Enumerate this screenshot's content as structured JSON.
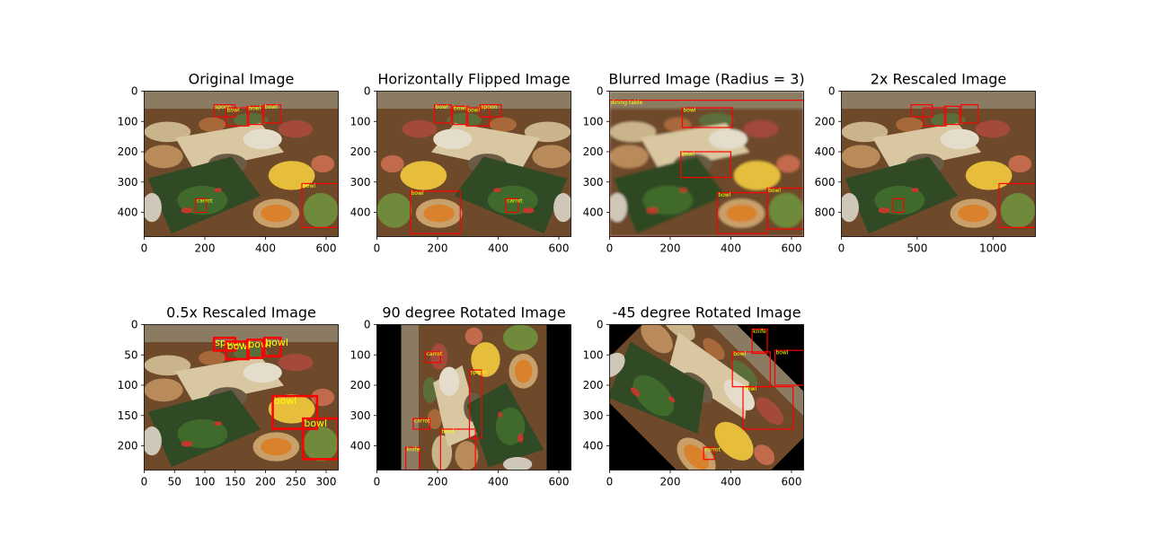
{
  "figure": {
    "background": "#ffffff"
  },
  "colors": {
    "box": "#ff0000",
    "label": "#ffff00"
  },
  "chart_data": [
    {
      "type": "image",
      "title": "Original Image",
      "xlim": [
        0,
        640
      ],
      "ylim": [
        0,
        480
      ],
      "xticks": [
        0,
        200,
        400,
        600
      ],
      "yticks": [
        0,
        100,
        200,
        300,
        400
      ],
      "scene": "normal",
      "boxes": [
        {
          "label": "spoon",
          "x0": 230,
          "y0": 45,
          "x1": 300,
          "y1": 85
        },
        {
          "label": "bowl",
          "x0": 270,
          "y0": 55,
          "x1": 345,
          "y1": 115
        },
        {
          "label": "bowl",
          "x0": 340,
          "y0": 50,
          "x1": 390,
          "y1": 110
        },
        {
          "label": "bowl",
          "x0": 395,
          "y0": 45,
          "x1": 450,
          "y1": 105
        },
        {
          "label": "carrot",
          "x0": 170,
          "y0": 355,
          "x1": 205,
          "y1": 400
        },
        {
          "label": "bowl",
          "x0": 520,
          "y0": 305,
          "x1": 640,
          "y1": 450
        }
      ]
    },
    {
      "type": "image",
      "title": "Horizontally Flipped Image",
      "xlim": [
        0,
        640
      ],
      "ylim": [
        0,
        480
      ],
      "xticks": [
        0,
        200,
        400,
        600
      ],
      "yticks": [
        0,
        100,
        200,
        300,
        400
      ],
      "scene": "flip",
      "boxes": [
        {
          "label": "bowl",
          "x0": 190,
          "y0": 45,
          "x1": 245,
          "y1": 105
        },
        {
          "label": "bowl",
          "x0": 250,
          "y0": 50,
          "x1": 300,
          "y1": 110
        },
        {
          "label": "bowl",
          "x0": 295,
          "y0": 55,
          "x1": 370,
          "y1": 115
        },
        {
          "label": "spoon",
          "x0": 340,
          "y0": 45,
          "x1": 410,
          "y1": 85
        },
        {
          "label": "bowl",
          "x0": 110,
          "y0": 330,
          "x1": 275,
          "y1": 470
        },
        {
          "label": "carrot",
          "x0": 425,
          "y0": 355,
          "x1": 465,
          "y1": 400
        }
      ]
    },
    {
      "type": "image",
      "title": "Blurred Image (Radius = 3)",
      "xlim": [
        0,
        640
      ],
      "ylim": [
        0,
        480
      ],
      "xticks": [
        0,
        200,
        400,
        600
      ],
      "yticks": [
        0,
        100,
        200,
        300,
        400
      ],
      "scene": "normal",
      "blur": 2,
      "boxes": [
        {
          "label": "dining table",
          "x0": 0,
          "y0": 30,
          "x1": 640,
          "y1": 480
        },
        {
          "label": "bowl",
          "x0": 240,
          "y0": 55,
          "x1": 405,
          "y1": 120
        },
        {
          "label": "bowl",
          "x0": 235,
          "y0": 200,
          "x1": 400,
          "y1": 285
        },
        {
          "label": "bowl",
          "x0": 355,
          "y0": 335,
          "x1": 520,
          "y1": 470
        },
        {
          "label": "bowl",
          "x0": 520,
          "y0": 320,
          "x1": 640,
          "y1": 455
        }
      ]
    },
    {
      "type": "image",
      "title": "2x Rescaled Image",
      "xlim": [
        0,
        1280
      ],
      "ylim": [
        0,
        960
      ],
      "xticks": [
        0,
        500,
        1000
      ],
      "yticks": [
        0,
        200,
        400,
        600,
        800
      ],
      "scene": "normal",
      "boxes": [
        {
          "label": "",
          "x0": 460,
          "y0": 90,
          "x1": 600,
          "y1": 170
        },
        {
          "label": "",
          "x0": 540,
          "y0": 110,
          "x1": 690,
          "y1": 230
        },
        {
          "label": "",
          "x0": 680,
          "y0": 100,
          "x1": 780,
          "y1": 220
        },
        {
          "label": "",
          "x0": 790,
          "y0": 90,
          "x1": 900,
          "y1": 210
        },
        {
          "label": "",
          "x0": 340,
          "y0": 710,
          "x1": 410,
          "y1": 800
        },
        {
          "label": "",
          "x0": 1040,
          "y0": 610,
          "x1": 1280,
          "y1": 900
        }
      ]
    },
    {
      "type": "image",
      "title": "0.5x Rescaled Image",
      "xlim": [
        0,
        320
      ],
      "ylim": [
        0,
        240
      ],
      "xticks": [
        0,
        50,
        100,
        150,
        200,
        250,
        300
      ],
      "yticks": [
        0,
        50,
        100,
        150,
        200
      ],
      "scene": "normal",
      "boxes": [
        {
          "label": "spoon",
          "x0": 115,
          "y0": 22,
          "x1": 150,
          "y1": 43
        },
        {
          "label": "bowl",
          "x0": 135,
          "y0": 28,
          "x1": 172,
          "y1": 57
        },
        {
          "label": "bowl",
          "x0": 170,
          "y0": 25,
          "x1": 195,
          "y1": 55
        },
        {
          "label": "bowl",
          "x0": 198,
          "y0": 22,
          "x1": 225,
          "y1": 52
        },
        {
          "label": "bowl",
          "x0": 212,
          "y0": 118,
          "x1": 285,
          "y1": 172
        },
        {
          "label": "bowl",
          "x0": 262,
          "y0": 155,
          "x1": 320,
          "y1": 222
        }
      ]
    },
    {
      "type": "image",
      "title": "90 degree Rotated Image",
      "xlim": [
        0,
        640
      ],
      "ylim": [
        0,
        480
      ],
      "xticks": [
        0,
        200,
        400,
        600
      ],
      "yticks": [
        0,
        100,
        200,
        300,
        400
      ],
      "scene": "rot90",
      "boxes": [
        {
          "label": "carrot",
          "x0": 160,
          "y0": 90,
          "x1": 210,
          "y1": 125
        },
        {
          "label": "spoon",
          "x0": 305,
          "y0": 150,
          "x1": 345,
          "y1": 375
        },
        {
          "label": "carrot",
          "x0": 120,
          "y0": 310,
          "x1": 175,
          "y1": 345
        },
        {
          "label": "bowl",
          "x0": 210,
          "y0": 345,
          "x1": 325,
          "y1": 480
        },
        {
          "label": "knife",
          "x0": 95,
          "y0": 405,
          "x1": 140,
          "y1": 480
        }
      ]
    },
    {
      "type": "image",
      "title": "-45 degree Rotated Image",
      "xlim": [
        0,
        640
      ],
      "ylim": [
        0,
        480
      ],
      "xticks": [
        0,
        200,
        400,
        600
      ],
      "yticks": [
        0,
        100,
        200,
        300,
        400
      ],
      "scene": "rot-45",
      "boxes": [
        {
          "label": "knife",
          "x0": 470,
          "y0": 15,
          "x1": 520,
          "y1": 95
        },
        {
          "label": "bowl",
          "x0": 545,
          "y0": 85,
          "x1": 640,
          "y1": 200
        },
        {
          "label": "bowl",
          "x0": 405,
          "y0": 90,
          "x1": 530,
          "y1": 205
        },
        {
          "label": "bowl",
          "x0": 440,
          "y0": 205,
          "x1": 605,
          "y1": 345
        },
        {
          "label": "carrot",
          "x0": 310,
          "y0": 405,
          "x1": 345,
          "y1": 445
        }
      ]
    }
  ]
}
